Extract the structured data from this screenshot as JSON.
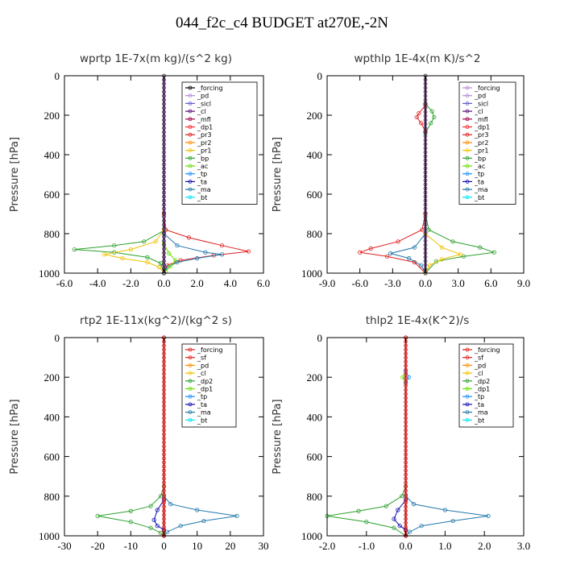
{
  "title": "044_f2c_c4  BUDGET at270E,-2N",
  "chart_data": [
    {
      "type": "line",
      "title": "wprtp  1E-7x(m kg)/(s^2 kg)",
      "ylabel": "Pressure [hPa]",
      "xlim": [
        -6.0,
        6.0
      ],
      "ylim": [
        1000,
        0
      ],
      "xticks": [
        "-6.0",
        "-4.0",
        "-2.0",
        "0.0",
        "2.0",
        "4.0",
        "6.0"
      ],
      "yticks": [
        "0",
        "200",
        "400",
        "600",
        "800",
        "1000"
      ],
      "legend_position": "top-right",
      "legend": [
        {
          "name": "_forcing",
          "color": "#000000"
        },
        {
          "name": "_pd",
          "color": "#b68ad6"
        },
        {
          "name": "_sicl",
          "color": "#6a5acd"
        },
        {
          "name": "_cl",
          "color": "#5a0e78"
        },
        {
          "name": "_mfl",
          "color": "#a0004b"
        },
        {
          "name": "_dp1",
          "color": "#ff2a2a"
        },
        {
          "name": "_pr3",
          "color": "#e02020"
        },
        {
          "name": "_pr2",
          "color": "#ff8c00"
        },
        {
          "name": "_pr1",
          "color": "#f0c000"
        },
        {
          "name": "_bp",
          "color": "#2ca02c"
        },
        {
          "name": "_ac",
          "color": "#66dd00"
        },
        {
          "name": "_tp",
          "color": "#1e90ff"
        },
        {
          "name": "_ta",
          "color": "#1010b0"
        },
        {
          "name": "_ma",
          "color": "#2277aa"
        },
        {
          "name": "_bt",
          "color": "#00e5ee"
        }
      ],
      "series": [
        {
          "name": "_bp",
          "color": "#2ca02c",
          "points": [
            [
              0,
              700
            ],
            [
              0.1,
              780
            ],
            [
              -1.2,
              840
            ],
            [
              -3.0,
              860
            ],
            [
              -5.4,
              880
            ],
            [
              -3.0,
              895
            ],
            [
              -1.0,
              920
            ],
            [
              -0.2,
              950
            ],
            [
              0,
              1000
            ]
          ]
        },
        {
          "name": "_pr3",
          "color": "#e02020",
          "points": [
            [
              0,
              700
            ],
            [
              0.1,
              780
            ],
            [
              1.5,
              820
            ],
            [
              3.5,
              860
            ],
            [
              5.1,
              890
            ],
            [
              3.0,
              910
            ],
            [
              1.0,
              935
            ],
            [
              0.2,
              960
            ],
            [
              0,
              1000
            ]
          ]
        },
        {
          "name": "_pr1",
          "color": "#f0c000",
          "points": [
            [
              0,
              780
            ],
            [
              -0.5,
              840
            ],
            [
              -2.0,
              880
            ],
            [
              -3.6,
              905
            ],
            [
              -2.5,
              925
            ],
            [
              -1.0,
              945
            ],
            [
              -0.3,
              970
            ],
            [
              0,
              1000
            ]
          ]
        },
        {
          "name": "_ma",
          "color": "#2277aa",
          "points": [
            [
              0,
              800
            ],
            [
              0.8,
              860
            ],
            [
              2.5,
              895
            ],
            [
              3.5,
              905
            ],
            [
              2.0,
              925
            ],
            [
              0.8,
              945
            ],
            [
              0.2,
              970
            ],
            [
              0,
              1000
            ]
          ]
        },
        {
          "name": "_ac",
          "color": "#66dd00",
          "points": [
            [
              0,
              850
            ],
            [
              0.3,
              900
            ],
            [
              0.7,
              935
            ],
            [
              0.4,
              965
            ],
            [
              0.1,
              990
            ]
          ]
        }
      ]
    },
    {
      "type": "line",
      "title": "wpthlp  1E-4x(m K)/s^2",
      "ylabel": "Pressure [hPa]",
      "xlim": [
        -9.0,
        9.0
      ],
      "ylim": [
        1000,
        0
      ],
      "xticks": [
        "-9.0",
        "-6.0",
        "-3.0",
        "0.0",
        "3.0",
        "6.0",
        "9.0"
      ],
      "yticks": [
        "0",
        "200",
        "400",
        "600",
        "800",
        "1000"
      ],
      "legend_position": "top-right",
      "legend": [
        {
          "name": "_forcing",
          "color": "#b68ad6"
        },
        {
          "name": "_pd",
          "color": "#b68ad6"
        },
        {
          "name": "_sicl",
          "color": "#6a5acd"
        },
        {
          "name": "_cl",
          "color": "#5a0e78"
        },
        {
          "name": "_mfl",
          "color": "#a0004b"
        },
        {
          "name": "_dp1",
          "color": "#ff2a2a"
        },
        {
          "name": "_pr3",
          "color": "#e02020"
        },
        {
          "name": "_pr2",
          "color": "#ff8c00"
        },
        {
          "name": "_pr1",
          "color": "#f0c000"
        },
        {
          "name": "_bp",
          "color": "#2ca02c"
        },
        {
          "name": "_ac",
          "color": "#66dd00"
        },
        {
          "name": "_tp",
          "color": "#1e90ff"
        },
        {
          "name": "_ta",
          "color": "#1010b0"
        },
        {
          "name": "_ma",
          "color": "#2277aa"
        },
        {
          "name": "_bt",
          "color": "#00e5ee"
        }
      ],
      "series": [
        {
          "name": "_bp",
          "color": "#2ca02c",
          "points": [
            [
              0,
              140
            ],
            [
              0.6,
              180
            ],
            [
              0.8,
              210
            ],
            [
              0.5,
              240
            ],
            [
              0,
              290
            ]
          ]
        },
        {
          "name": "_pr3",
          "color": "#e02020",
          "points": [
            [
              0,
              150
            ],
            [
              -0.6,
              190
            ],
            [
              -0.8,
              210
            ],
            [
              -0.4,
              240
            ],
            [
              0,
              280
            ]
          ]
        },
        {
          "name": "_bp",
          "color": "#2ca02c",
          "points": [
            [
              0,
              700
            ],
            [
              0.3,
              780
            ],
            [
              2.5,
              840
            ],
            [
              5.0,
              870
            ],
            [
              6.3,
              895
            ],
            [
              3.5,
              915
            ],
            [
              1.0,
              940
            ],
            [
              0,
              1000
            ]
          ]
        },
        {
          "name": "_pr3",
          "color": "#e02020",
          "points": [
            [
              0,
              700
            ],
            [
              -0.3,
              780
            ],
            [
              -2.5,
              840
            ],
            [
              -5.0,
              875
            ],
            [
              -6.0,
              895
            ],
            [
              -3.5,
              915
            ],
            [
              -1.0,
              945
            ],
            [
              0,
              1000
            ]
          ]
        },
        {
          "name": "_ma",
          "color": "#2277aa",
          "points": [
            [
              0,
              800
            ],
            [
              -1.0,
              870
            ],
            [
              -3.2,
              900
            ],
            [
              -1.5,
              925
            ],
            [
              -0.4,
              960
            ],
            [
              0,
              1000
            ]
          ]
        },
        {
          "name": "_pr1",
          "color": "#f0c000",
          "points": [
            [
              0,
              800
            ],
            [
              1.5,
              870
            ],
            [
              3.2,
              905
            ],
            [
              1.5,
              930
            ],
            [
              0.4,
              960
            ],
            [
              0,
              1000
            ]
          ]
        }
      ]
    },
    {
      "type": "line",
      "title": "rtp2  1E-11x(kg^2)/(kg^2 s)",
      "ylabel": "Pressure [hPa]",
      "xlim": [
        -30,
        30
      ],
      "ylim": [
        1000,
        0
      ],
      "xticks": [
        "-30",
        "-20",
        "-10",
        "0",
        "10",
        "20",
        "30"
      ],
      "yticks": [
        "0",
        "200",
        "400",
        "600",
        "800",
        "1000"
      ],
      "legend_position": "top-right",
      "legend": [
        {
          "name": "_forcing",
          "color": "#e02020"
        },
        {
          "name": "_sf",
          "color": "#e02020"
        },
        {
          "name": "_pd",
          "color": "#ff8c00"
        },
        {
          "name": "_cl",
          "color": "#f0c000"
        },
        {
          "name": "_dp2",
          "color": "#2ca02c"
        },
        {
          "name": "_dp1",
          "color": "#66dd00"
        },
        {
          "name": "_tp",
          "color": "#1e90ff"
        },
        {
          "name": "_ta",
          "color": "#1010b0"
        },
        {
          "name": "_ma",
          "color": "#2277aa"
        },
        {
          "name": "_bt",
          "color": "#00e5ee"
        }
      ],
      "series": [
        {
          "name": "_dp2",
          "color": "#2ca02c",
          "points": [
            [
              0,
              750
            ],
            [
              -1,
              800
            ],
            [
              -4,
              850
            ],
            [
              -10,
              875
            ],
            [
              -20,
              900
            ],
            [
              -10,
              930
            ],
            [
              -4,
              960
            ],
            [
              -1,
              985
            ],
            [
              0,
              1000
            ]
          ]
        },
        {
          "name": "_ma",
          "color": "#2277aa",
          "points": [
            [
              0,
              800
            ],
            [
              2,
              840
            ],
            [
              10,
              870
            ],
            [
              22,
              900
            ],
            [
              12,
              925
            ],
            [
              5,
              950
            ],
            [
              1,
              980
            ],
            [
              0,
              1000
            ]
          ]
        },
        {
          "name": "_ta",
          "color": "#1010b0",
          "points": [
            [
              0,
              820
            ],
            [
              -2,
              870
            ],
            [
              -3,
              920
            ],
            [
              -2,
              950
            ],
            [
              0,
              970
            ]
          ]
        },
        {
          "name": "_forcing",
          "color": "#e02020",
          "points": [
            [
              0,
              0
            ],
            [
              0,
              1000
            ]
          ]
        }
      ]
    },
    {
      "type": "line",
      "title": "thlp2  1E-4x(K^2)/s",
      "ylabel": "Pressure [hPa]",
      "xlim": [
        -2.0,
        3.0
      ],
      "ylim": [
        1000,
        0
      ],
      "xticks": [
        "-2.0",
        "-1.0",
        "0.0",
        "1.0",
        "2.0",
        "3.0"
      ],
      "yticks": [
        "0",
        "200",
        "400",
        "600",
        "800",
        "1000"
      ],
      "legend_position": "top-right",
      "legend": [
        {
          "name": "_forcing",
          "color": "#e02020"
        },
        {
          "name": "_sf",
          "color": "#e02020"
        },
        {
          "name": "_pd",
          "color": "#ff8c00"
        },
        {
          "name": "_cl",
          "color": "#f0c000"
        },
        {
          "name": "_dp2",
          "color": "#2ca02c"
        },
        {
          "name": "_dp1",
          "color": "#66dd00"
        },
        {
          "name": "_tp",
          "color": "#1e90ff"
        },
        {
          "name": "_ta",
          "color": "#1010b0"
        },
        {
          "name": "_ma",
          "color": "#2277aa"
        },
        {
          "name": "_bt",
          "color": "#00e5ee"
        }
      ],
      "series": [
        {
          "name": "_dp2",
          "color": "#2ca02c",
          "points": [
            [
              0,
              750
            ],
            [
              -0.1,
              800
            ],
            [
              -0.5,
              850
            ],
            [
              -1.2,
              875
            ],
            [
              -2.0,
              900
            ],
            [
              -1.0,
              930
            ],
            [
              -0.3,
              960
            ],
            [
              0,
              1000
            ]
          ]
        },
        {
          "name": "_ma",
          "color": "#2277aa",
          "points": [
            [
              0,
              800
            ],
            [
              0.2,
              840
            ],
            [
              1.0,
              870
            ],
            [
              2.1,
              900
            ],
            [
              1.2,
              925
            ],
            [
              0.4,
              950
            ],
            [
              0.1,
              980
            ],
            [
              0,
              1000
            ]
          ]
        },
        {
          "name": "_ta",
          "color": "#1010b0",
          "points": [
            [
              0,
              820
            ],
            [
              -0.2,
              870
            ],
            [
              -0.3,
              915
            ],
            [
              -0.15,
              950
            ],
            [
              0,
              970
            ]
          ]
        },
        {
          "name": "_dp1",
          "color": "#66dd00",
          "points": [
            [
              0,
              170
            ],
            [
              -0.08,
              200
            ],
            [
              0,
              230
            ]
          ]
        },
        {
          "name": "_tp",
          "color": "#1e90ff",
          "points": [
            [
              0,
              170
            ],
            [
              0.08,
              200
            ],
            [
              0,
              230
            ]
          ]
        },
        {
          "name": "_forcing",
          "color": "#e02020",
          "points": [
            [
              0,
              0
            ],
            [
              0,
              1000
            ]
          ]
        }
      ]
    }
  ]
}
